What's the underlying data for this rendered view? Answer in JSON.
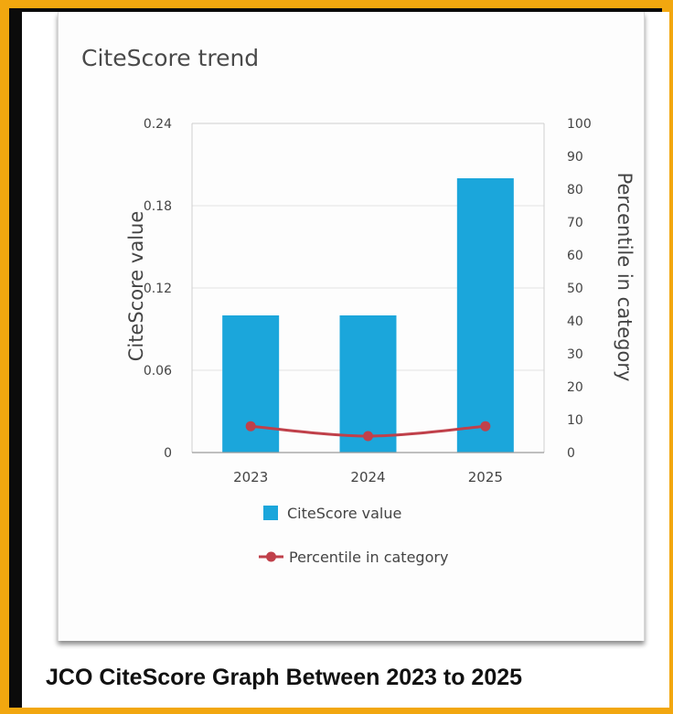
{
  "caption": "JCO CiteScore Graph Between 2023 to 2025",
  "chart_data": {
    "type": "bar",
    "title": "CiteScore trend",
    "categories": [
      "2023",
      "2024",
      "2025"
    ],
    "series": [
      {
        "name": "CiteScore value",
        "type": "bar",
        "axis": "left",
        "values": [
          0.1,
          0.1,
          0.2
        ],
        "color": "#1ba6db"
      },
      {
        "name": "Percentile in category",
        "type": "line",
        "axis": "right",
        "values": [
          8,
          5,
          8
        ],
        "color": "#c0404a"
      }
    ],
    "ylabel": "CiteScore value",
    "ylabel_right": "Percentile in category",
    "ylim": [
      0,
      0.24
    ],
    "ylim_right": [
      0,
      100
    ],
    "yticks": [
      "0",
      "0.06",
      "0.12",
      "0.18",
      "0.24"
    ],
    "yticks_right": [
      "0",
      "10",
      "20",
      "30",
      "40",
      "50",
      "60",
      "70",
      "80",
      "90",
      "100"
    ],
    "grid": true,
    "legend_position": "bottom"
  }
}
